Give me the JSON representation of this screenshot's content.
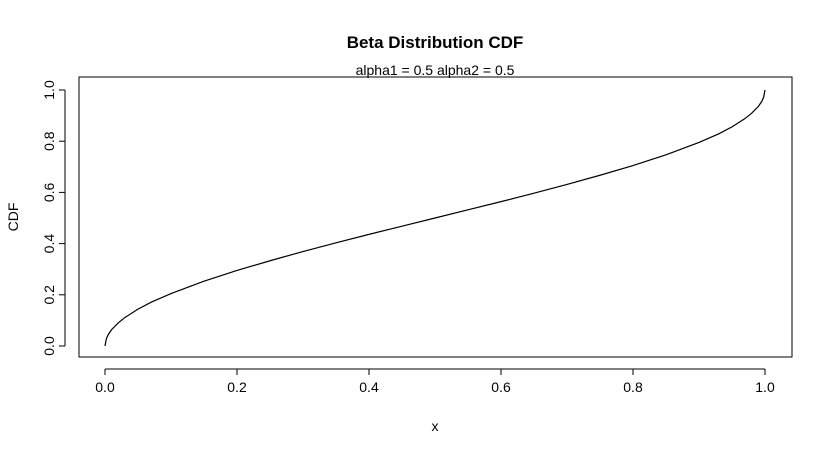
{
  "chart_data": {
    "type": "line",
    "title": "Beta Distribution CDF",
    "subtitle": "alpha1 = 0.5  alpha2 = 0.5",
    "xlabel": "x",
    "ylabel": "CDF",
    "xlim": [
      0,
      1
    ],
    "ylim": [
      0,
      1
    ],
    "x_ticks": [
      0.0,
      0.2,
      0.4,
      0.6,
      0.8,
      1.0
    ],
    "x_tick_labels": [
      "0.0",
      "0.2",
      "0.4",
      "0.6",
      "0.8",
      "1.0"
    ],
    "y_ticks": [
      0.0,
      0.2,
      0.4,
      0.6,
      0.8,
      1.0
    ],
    "y_tick_labels": [
      "0.0",
      "0.2",
      "0.4",
      "0.6",
      "0.8",
      "1.0"
    ],
    "grid": false,
    "series": [
      {
        "x": [
          0.0,
          0.002,
          0.005,
          0.01,
          0.02,
          0.03,
          0.05,
          0.07,
          0.1,
          0.15,
          0.2,
          0.25,
          0.3,
          0.35,
          0.4,
          0.45,
          0.5,
          0.55,
          0.6,
          0.65,
          0.7,
          0.75,
          0.8,
          0.85,
          0.9,
          0.93,
          0.95,
          0.97,
          0.98,
          0.99,
          0.995,
          0.998,
          1.0
        ],
        "y": [
          0.0,
          0.028,
          0.045,
          0.064,
          0.09,
          0.111,
          0.144,
          0.171,
          0.205,
          0.253,
          0.295,
          0.333,
          0.369,
          0.403,
          0.436,
          0.468,
          0.5,
          0.532,
          0.564,
          0.597,
          0.631,
          0.667,
          0.705,
          0.747,
          0.795,
          0.829,
          0.856,
          0.889,
          0.91,
          0.936,
          0.955,
          0.972,
          1.0
        ]
      }
    ]
  }
}
